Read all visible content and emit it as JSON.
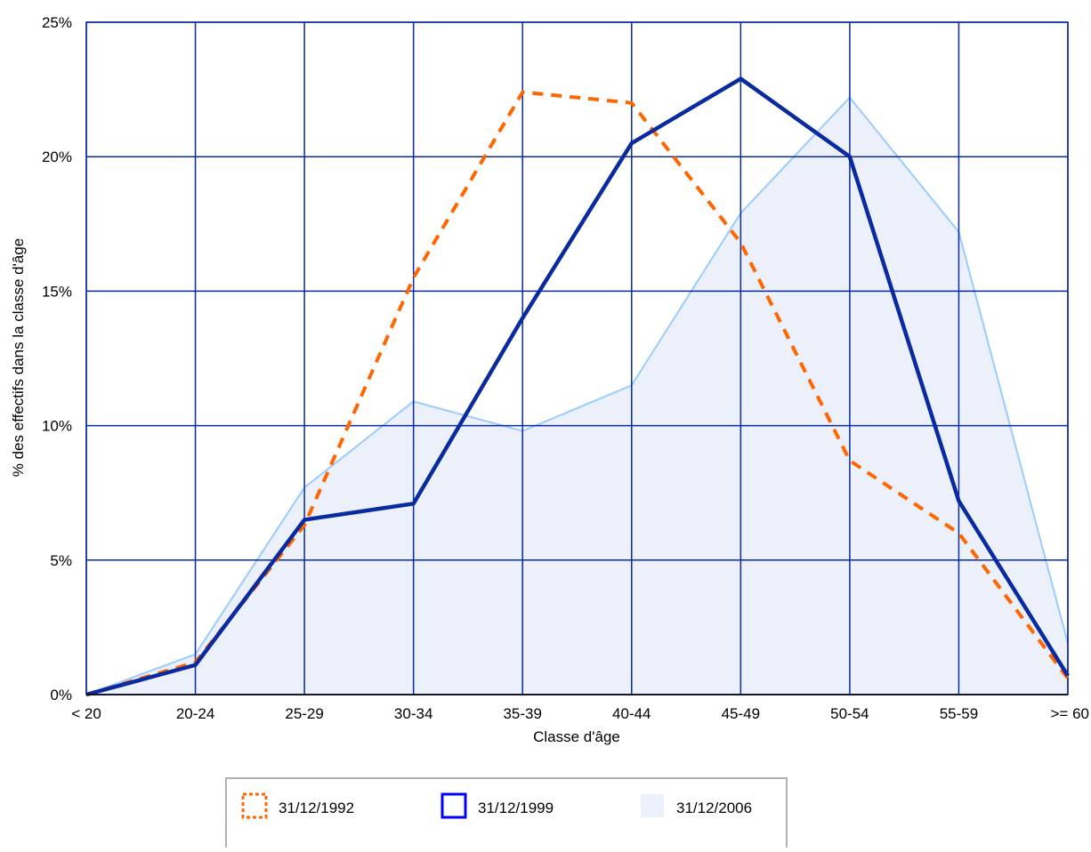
{
  "chart_data": {
    "type": "line",
    "categories": [
      "< 20",
      "20-24",
      "25-29",
      "30-34",
      "35-39",
      "40-44",
      "45-49",
      "50-54",
      "55-59",
      ">= 60"
    ],
    "series": [
      {
        "name": "31/12/1992",
        "kind": "dashed-line",
        "color": "#FF6600",
        "values": [
          0.0,
          1.2,
          6.3,
          15.5,
          22.4,
          22.0,
          16.8,
          8.7,
          6.0,
          0.6
        ]
      },
      {
        "name": "31/12/1999",
        "kind": "line",
        "color": "#0A2AA0",
        "values": [
          0.0,
          1.1,
          6.5,
          7.1,
          14.0,
          20.5,
          22.9,
          20.0,
          7.2,
          0.7
        ]
      },
      {
        "name": "31/12/2006",
        "kind": "area",
        "color": "#ECF0FB",
        "stroke": "#99CCFF",
        "values": [
          0.0,
          1.5,
          7.7,
          10.9,
          9.8,
          11.5,
          17.9,
          22.2,
          17.2,
          1.9
        ]
      }
    ],
    "xlabel": "Classe d'âge",
    "ylabel": "% des effectifs dans la classe d'âge",
    "ylim": [
      0,
      25
    ],
    "yticks": [
      0,
      5,
      10,
      15,
      20,
      25
    ],
    "ytick_labels": [
      "0%",
      "5%",
      "10%",
      "15%",
      "20%",
      "25%"
    ],
    "grid": true,
    "grid_color": "#0A2AA0",
    "legend_position": "bottom"
  }
}
